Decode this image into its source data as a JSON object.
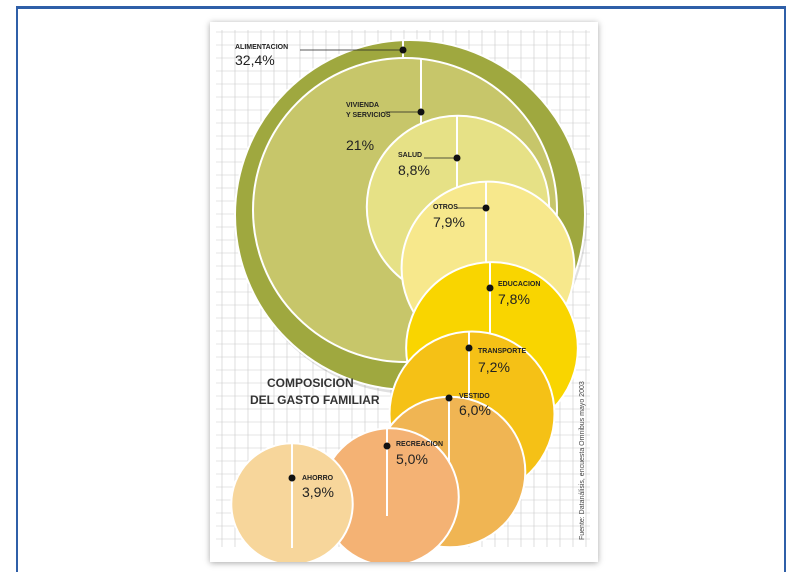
{
  "chart_data": {
    "type": "bubble",
    "title_lines": [
      "COMPOSICION",
      "DEL GASTO FAMILIAR"
    ],
    "source": "Fuente: Datanálisis, encuesta Omnibus mayo 2003",
    "unit": "%",
    "categories": [
      {
        "label": "ALIMENTACION",
        "value": 32.4,
        "display": "32,4%",
        "color": "#9fa83f"
      },
      {
        "label": "VIVIENDA Y SERVICIOS",
        "label_lines": [
          "VIVIENDA",
          "Y SERVICIOS"
        ],
        "value": 21.0,
        "display": "21%",
        "color": "#c7c66a"
      },
      {
        "label": "SALUD",
        "value": 8.8,
        "display": "8,8%",
        "color": "#e6e186"
      },
      {
        "label": "OTROS",
        "value": 7.9,
        "display": "7,9%",
        "color": "#f7e88c"
      },
      {
        "label": "EDUCACION",
        "value": 7.8,
        "display": "7,8%",
        "color": "#f9d500"
      },
      {
        "label": "TRANSPORTE",
        "value": 7.2,
        "display": "7,2%",
        "color": "#f5c116"
      },
      {
        "label": "VESTIDO",
        "value": 6.0,
        "display": "6,0%",
        "color": "#f0b553"
      },
      {
        "label": "RECREACION",
        "value": 5.0,
        "display": "5,0%",
        "color": "#f4b274"
      },
      {
        "label": "AHORRO",
        "value": 3.9,
        "display": "3,9%",
        "color": "#f7d69b"
      }
    ]
  }
}
